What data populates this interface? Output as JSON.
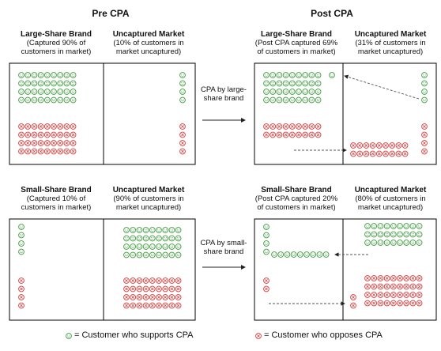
{
  "titles": {
    "pre": "Pre CPA",
    "post": "Post CPA"
  },
  "panels": {
    "pre_large": {
      "left_title": "Large-Share Brand",
      "left_sub1": "(Captured 90% of",
      "left_sub2": "customers in market)",
      "right_title": "Uncaptured Market",
      "right_sub1": "(10% of customers in",
      "right_sub2": "market uncaptured)"
    },
    "post_large": {
      "left_title": "Large-Share Brand",
      "left_sub1": "(Post CPA captured 69%",
      "left_sub2": "of customers in market)",
      "right_title": "Uncaptured Market",
      "right_sub1": "(31% of customers in",
      "right_sub2": "market uncaptured)"
    },
    "pre_small": {
      "left_title": "Small-Share Brand",
      "left_sub1": "(Captured 10% of",
      "left_sub2": "customers in market)",
      "right_title": "Uncaptured Market",
      "right_sub1": "(90% of customers in",
      "right_sub2": "market uncaptured)"
    },
    "post_small": {
      "left_title": "Small-Share Brand",
      "left_sub1": "(Post CPA captured 20%",
      "left_sub2": "of customers in market)",
      "right_title": "Uncaptured Market",
      "right_sub1": "(80% of customers in",
      "right_sub2": "market uncaptured)"
    }
  },
  "arrows": {
    "large_line1": "CPA by large-",
    "large_line2": "share brand",
    "small_line1": "CPA by small-",
    "small_line2": "share brand"
  },
  "legend": {
    "supports": "= Customer who supports CPA",
    "opposes": "= Customer who opposes CPA"
  },
  "colors": {
    "supporter": "#3f9a3f",
    "opposer": "#d43c3c",
    "dashed": "#555555"
  }
}
